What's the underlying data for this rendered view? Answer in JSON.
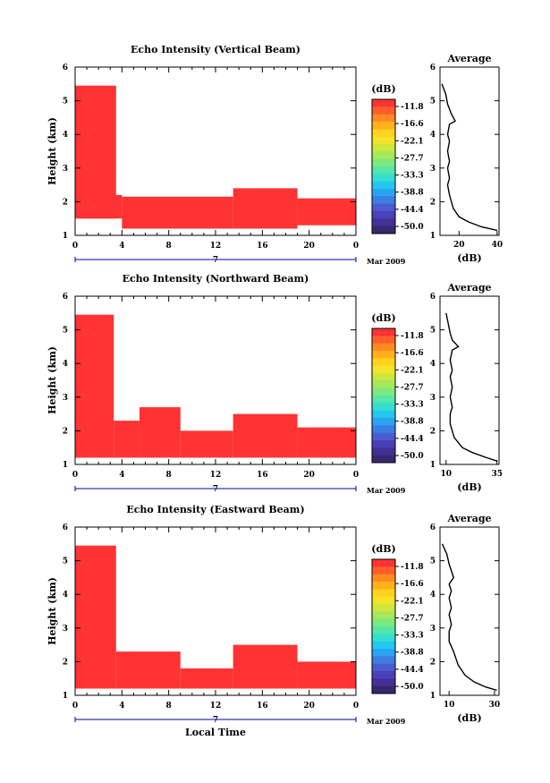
{
  "chart_data": [
    {
      "type": "heatmap",
      "title": "Echo Intensity (Vertical Beam)",
      "ylabel": "Height (km)",
      "xlabel": "",
      "date_label": "7",
      "month_year_label": "Mar 2009",
      "x_ticks": [
        "0",
        "4",
        "8",
        "12",
        "16",
        "20",
        "0"
      ],
      "y_ticks": [
        "1",
        "2",
        "3",
        "4",
        "5",
        "6"
      ],
      "xlim": [
        0,
        24
      ],
      "ylim": [
        1,
        6
      ],
      "colorbar": {
        "unit": "(dB)",
        "labels": [
          "-11.8",
          "-16.6",
          "-22.1",
          "-27.7",
          "-33.3",
          "-38.8",
          "-44.4",
          "-50.0"
        ]
      },
      "echo_regions": [
        {
          "x": [
            0.0,
            3.5
          ],
          "height_top": 5.45,
          "height_bottom": 1.5
        },
        {
          "x": [
            0.5,
            4.0
          ],
          "height_top": 2.2,
          "height_bottom": 1.5
        },
        {
          "x": [
            4.0,
            13.5
          ],
          "height_top": 2.15,
          "height_bottom": 1.2
        },
        {
          "x": [
            13.5,
            19.0
          ],
          "height_top": 2.4,
          "height_bottom": 1.2
        },
        {
          "x": [
            19.0,
            24.0
          ],
          "height_top": 2.1,
          "height_bottom": 1.3
        }
      ],
      "profile": {
        "title": "Average",
        "xlabel": "(dB)",
        "x_ticks": [
          "20",
          "40"
        ],
        "xlim": [
          10,
          41
        ],
        "ylim": [
          1,
          6
        ],
        "y_ticks": [
          "1",
          "2",
          "3",
          "4",
          "5",
          "6"
        ],
        "points": [
          {
            "x": 11,
            "y": 5.5
          },
          {
            "x": 13,
            "y": 5.2
          },
          {
            "x": 14,
            "y": 4.9
          },
          {
            "x": 16,
            "y": 4.6
          },
          {
            "x": 18,
            "y": 4.4
          },
          {
            "x": 15,
            "y": 4.3
          },
          {
            "x": 14,
            "y": 4.0
          },
          {
            "x": 15,
            "y": 3.8
          },
          {
            "x": 14,
            "y": 3.5
          },
          {
            "x": 15,
            "y": 3.2
          },
          {
            "x": 14,
            "y": 3.0
          },
          {
            "x": 15,
            "y": 2.7
          },
          {
            "x": 14,
            "y": 2.5
          },
          {
            "x": 15,
            "y": 2.2
          },
          {
            "x": 17,
            "y": 1.8
          },
          {
            "x": 20,
            "y": 1.55
          },
          {
            "x": 25,
            "y": 1.4
          },
          {
            "x": 32,
            "y": 1.25
          },
          {
            "x": 40,
            "y": 1.15
          }
        ]
      }
    },
    {
      "type": "heatmap",
      "title": "Echo Intensity (Northward Beam)",
      "ylabel": "Height (km)",
      "xlabel": "",
      "date_label": "7",
      "month_year_label": "Mar 2009",
      "x_ticks": [
        "0",
        "4",
        "8",
        "12",
        "16",
        "20",
        "0"
      ],
      "y_ticks": [
        "1",
        "2",
        "3",
        "4",
        "5",
        "6"
      ],
      "xlim": [
        0,
        24
      ],
      "ylim": [
        1,
        6
      ],
      "colorbar": {
        "unit": "(dB)",
        "labels": [
          "-11.8",
          "-16.6",
          "-22.1",
          "-27.7",
          "-33.3",
          "-38.8",
          "-44.4",
          "-50.0"
        ]
      },
      "echo_regions": [
        {
          "x": [
            0.0,
            3.3
          ],
          "height_top": 5.45,
          "height_bottom": 1.2
        },
        {
          "x": [
            3.3,
            5.5
          ],
          "height_top": 2.3,
          "height_bottom": 1.2
        },
        {
          "x": [
            5.5,
            9.0
          ],
          "height_top": 2.7,
          "height_bottom": 1.2
        },
        {
          "x": [
            9.0,
            13.5
          ],
          "height_top": 2.0,
          "height_bottom": 1.2
        },
        {
          "x": [
            13.5,
            19.0
          ],
          "height_top": 2.5,
          "height_bottom": 1.2
        },
        {
          "x": [
            19.0,
            24.0
          ],
          "height_top": 2.1,
          "height_bottom": 1.2
        }
      ],
      "profile": {
        "title": "Average",
        "xlabel": "(dB)",
        "x_ticks": [
          "10",
          "35"
        ],
        "xlim": [
          7,
          36
        ],
        "ylim": [
          1,
          6
        ],
        "y_ticks": [
          "1",
          "2",
          "3",
          "4",
          "5",
          "6"
        ],
        "points": [
          {
            "x": 10,
            "y": 5.5
          },
          {
            "x": 11,
            "y": 5.2
          },
          {
            "x": 12,
            "y": 4.9
          },
          {
            "x": 13,
            "y": 4.7
          },
          {
            "x": 16,
            "y": 4.5
          },
          {
            "x": 13,
            "y": 4.4
          },
          {
            "x": 12,
            "y": 4.1
          },
          {
            "x": 13,
            "y": 3.8
          },
          {
            "x": 12,
            "y": 3.6
          },
          {
            "x": 13,
            "y": 3.3
          },
          {
            "x": 12,
            "y": 3.0
          },
          {
            "x": 13,
            "y": 2.7
          },
          {
            "x": 12,
            "y": 2.5
          },
          {
            "x": 12,
            "y": 2.2
          },
          {
            "x": 14,
            "y": 1.8
          },
          {
            "x": 18,
            "y": 1.5
          },
          {
            "x": 23,
            "y": 1.35
          },
          {
            "x": 30,
            "y": 1.2
          },
          {
            "x": 35,
            "y": 1.1
          }
        ]
      }
    },
    {
      "type": "heatmap",
      "title": "Echo Intensity (Eastward Beam)",
      "ylabel": "Height (km)",
      "xlabel": "Local Time",
      "date_label": "7",
      "month_year_label": "Mar 2009",
      "x_ticks": [
        "0",
        "4",
        "8",
        "12",
        "16",
        "20",
        "0"
      ],
      "y_ticks": [
        "1",
        "2",
        "3",
        "4",
        "5",
        "6"
      ],
      "xlim": [
        0,
        24
      ],
      "ylim": [
        1,
        6
      ],
      "colorbar": {
        "unit": "(dB)",
        "labels": [
          "-11.8",
          "-16.6",
          "-22.1",
          "-27.7",
          "-33.3",
          "-38.8",
          "-44.4",
          "-50.0"
        ]
      },
      "echo_regions": [
        {
          "x": [
            0.0,
            3.5
          ],
          "height_top": 5.45,
          "height_bottom": 1.2
        },
        {
          "x": [
            3.5,
            9.0
          ],
          "height_top": 2.3,
          "height_bottom": 1.2
        },
        {
          "x": [
            9.0,
            13.5
          ],
          "height_top": 1.8,
          "height_bottom": 1.2
        },
        {
          "x": [
            13.5,
            19.0
          ],
          "height_top": 2.5,
          "height_bottom": 1.2
        },
        {
          "x": [
            19.0,
            24.0
          ],
          "height_top": 2.0,
          "height_bottom": 1.2
        }
      ],
      "profile": {
        "title": "Average",
        "xlabel": "(dB)",
        "x_ticks": [
          "10",
          "30"
        ],
        "xlim": [
          6,
          32
        ],
        "ylim": [
          1,
          6
        ],
        "y_ticks": [
          "1",
          "2",
          "3",
          "4",
          "5",
          "6"
        ],
        "points": [
          {
            "x": 7,
            "y": 5.5
          },
          {
            "x": 9,
            "y": 5.2
          },
          {
            "x": 10,
            "y": 4.9
          },
          {
            "x": 11,
            "y": 4.7
          },
          {
            "x": 12,
            "y": 4.5
          },
          {
            "x": 10,
            "y": 4.3
          },
          {
            "x": 11,
            "y": 4.1
          },
          {
            "x": 10,
            "y": 3.9
          },
          {
            "x": 11,
            "y": 3.6
          },
          {
            "x": 10,
            "y": 3.4
          },
          {
            "x": 11,
            "y": 3.1
          },
          {
            "x": 10,
            "y": 2.9
          },
          {
            "x": 10,
            "y": 2.6
          },
          {
            "x": 12,
            "y": 2.3
          },
          {
            "x": 14,
            "y": 1.9
          },
          {
            "x": 17,
            "y": 1.6
          },
          {
            "x": 21,
            "y": 1.4
          },
          {
            "x": 26,
            "y": 1.25
          },
          {
            "x": 31,
            "y": 1.15
          }
        ]
      }
    }
  ],
  "colors": {
    "echo": "#ff3333",
    "axis": "#000000",
    "time_bar": "#0000aa",
    "colorbar": [
      "#ff3333",
      "#ff5e2b",
      "#ff8a22",
      "#ffb01a",
      "#ffd21e",
      "#f3e42a",
      "#cfe63d",
      "#a4e85b",
      "#7ce97d",
      "#55e6a8",
      "#35dfd0",
      "#22c8ee",
      "#2aa4f2",
      "#3a7ee4",
      "#4b5bd2",
      "#4a40b8",
      "#423095",
      "#38266f"
    ]
  }
}
